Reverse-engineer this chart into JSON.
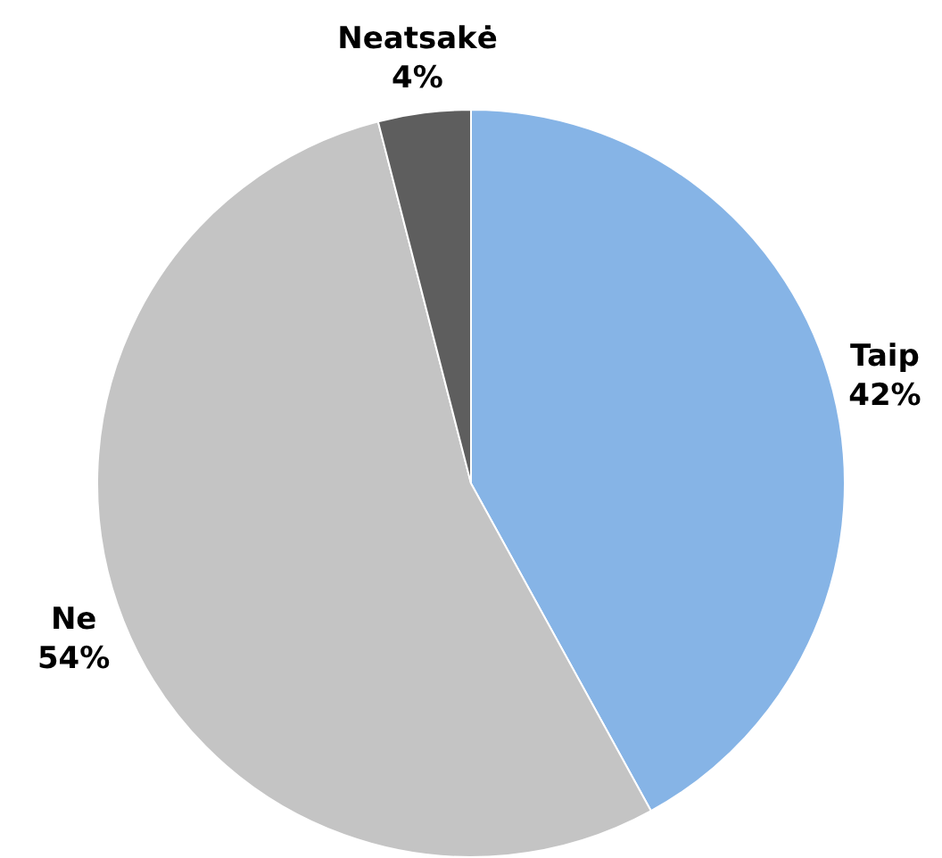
{
  "chart_data": {
    "type": "pie",
    "categories": [
      "Taip",
      "Ne",
      "Neatsakė"
    ],
    "values": [
      42,
      54,
      4
    ],
    "colors": [
      "#86b4e6",
      "#c4c4c4",
      "#5e5e5e"
    ],
    "value_labels": [
      "42%",
      "54%",
      "4%"
    ],
    "legend": false
  }
}
